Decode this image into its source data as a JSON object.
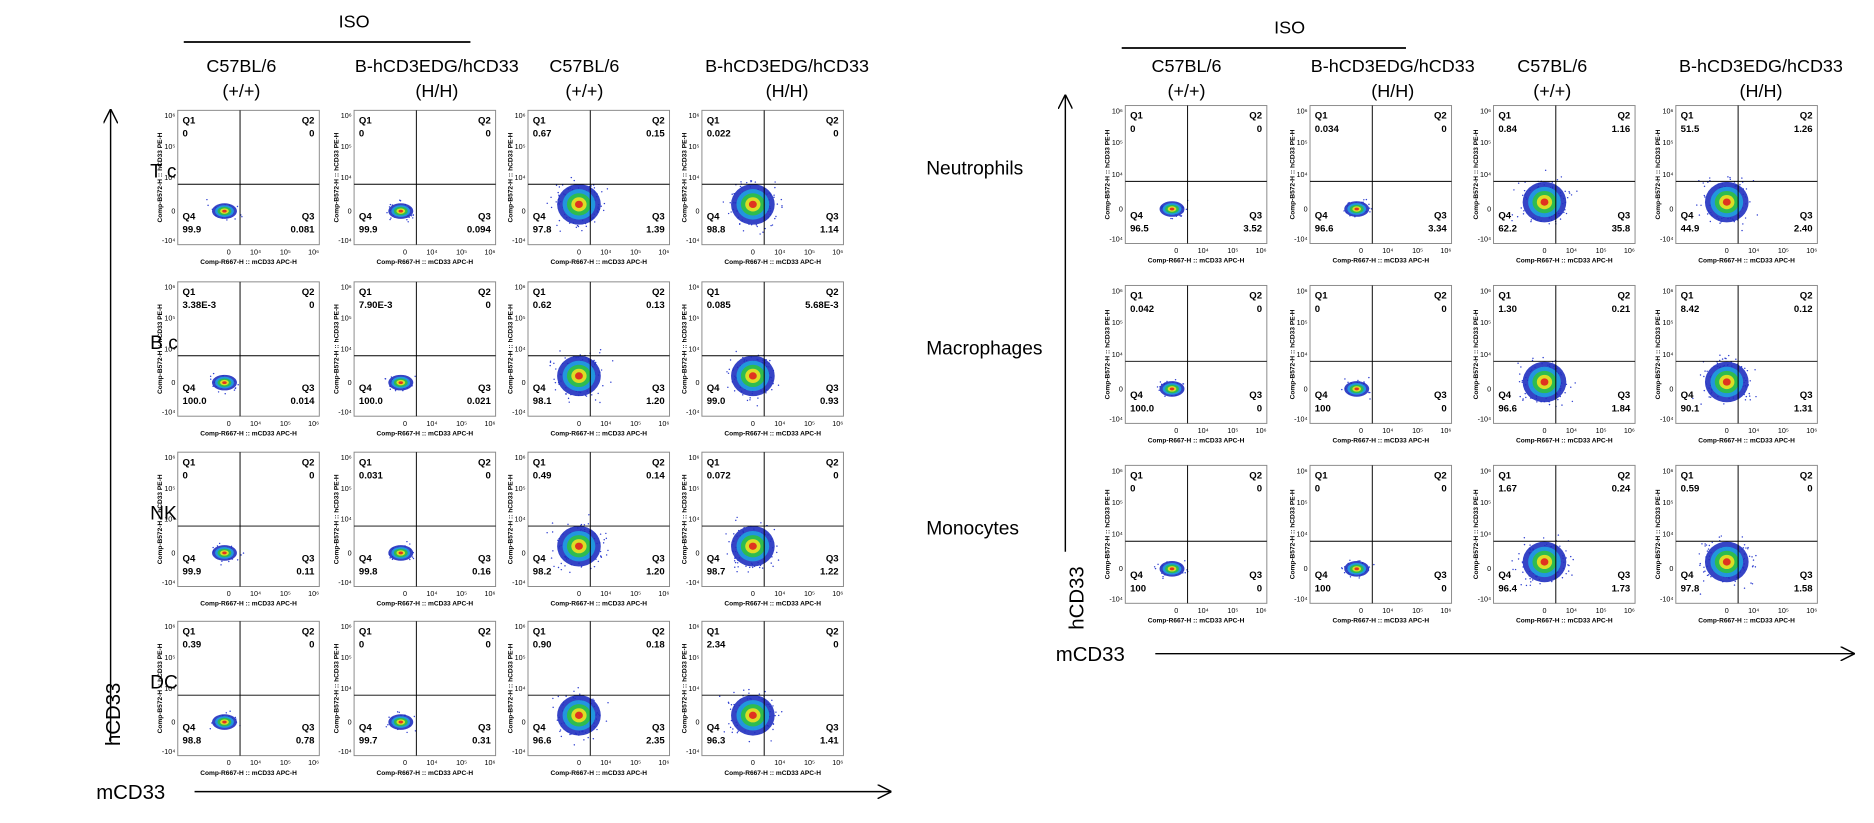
{
  "plot_text": {
    "quadrant_names": [
      "Q1",
      "Q2",
      "Q3",
      "Q4"
    ],
    "x_label": "Comp-R667-H :: mCD33 APC-H",
    "y_label": "Comp-B572-H :: hCD33 PE-H",
    "yticks": [
      "10⁶",
      "10⁵",
      "10⁴",
      "0",
      "-10⁴"
    ],
    "xticks": [
      "0",
      "10⁴",
      "10⁵",
      "10⁶"
    ]
  },
  "left": {
    "group_label": "ISO",
    "columns": [
      [
        "C57BL/6",
        "(+/+)"
      ],
      [
        "B-hCD3EDG/hCD33",
        "(H/H)"
      ],
      [
        "C57BL/6",
        "(+/+)"
      ],
      [
        "B-hCD3EDG/hCD33",
        "(H/H)"
      ]
    ],
    "rows": [
      "T cells",
      "B cells",
      "NKs",
      "DCs"
    ],
    "y_axis": "hCD33",
    "x_axis": "mCD33",
    "panels": [
      [
        [
          "0",
          "0",
          "0.081",
          "99.9"
        ],
        [
          "0",
          "0",
          "0.094",
          "99.9"
        ],
        [
          "0.67",
          "0.15",
          "1.39",
          "97.8"
        ],
        [
          "0.022",
          "0",
          "1.14",
          "98.8"
        ]
      ],
      [
        [
          "3.38E-3",
          "0",
          "0.014",
          "100.0"
        ],
        [
          "7.90E-3",
          "0",
          "0.021",
          "100.0"
        ],
        [
          "0.62",
          "0.13",
          "1.20",
          "98.1"
        ],
        [
          "0.085",
          "5.68E-3",
          "0.93",
          "99.0"
        ]
      ],
      [
        [
          "0",
          "0",
          "0.11",
          "99.9"
        ],
        [
          "0.031",
          "0",
          "0.16",
          "99.8"
        ],
        [
          "0.49",
          "0.14",
          "1.20",
          "98.2"
        ],
        [
          "0.072",
          "0",
          "1.22",
          "98.7"
        ]
      ],
      [
        [
          "0.39",
          "0",
          "0.78",
          "98.8"
        ],
        [
          "0",
          "0",
          "0.31",
          "99.7"
        ],
        [
          "0.90",
          "0.18",
          "2.35",
          "96.6"
        ],
        [
          "2.34",
          "0",
          "1.41",
          "96.3"
        ]
      ]
    ]
  },
  "right": {
    "group_label": "ISO",
    "columns": [
      [
        "C57BL/6",
        "(+/+)"
      ],
      [
        "B-hCD3EDG/hCD33",
        "(H/H)"
      ],
      [
        "C57BL/6",
        "(+/+)"
      ],
      [
        "B-hCD3EDG/hCD33",
        "(H/H)"
      ]
    ],
    "rows": [
      "Neutrophils",
      "Macrophages",
      "Monocytes"
    ],
    "y_axis": "hCD33",
    "x_axis": "mCD33",
    "panels": [
      [
        [
          "0",
          "0",
          "3.52",
          "96.5"
        ],
        [
          "0.034",
          "0",
          "3.34",
          "96.6"
        ],
        [
          "0.84",
          "1.16",
          "35.8",
          "62.2"
        ],
        [
          "51.5",
          "1.26",
          "2.40",
          "44.9"
        ]
      ],
      [
        [
          "0.042",
          "0",
          "0",
          "100.0"
        ],
        [
          "0",
          "0",
          "0",
          "100"
        ],
        [
          "1.30",
          "0.21",
          "1.84",
          "96.6"
        ],
        [
          "8.42",
          "0.12",
          "1.31",
          "90.1"
        ]
      ],
      [
        [
          "0",
          "0",
          "0",
          "100"
        ],
        [
          "0",
          "0",
          "0",
          "100"
        ],
        [
          "1.67",
          "0.24",
          "1.73",
          "96.4"
        ],
        [
          "0.59",
          "0",
          "1.58",
          "97.8"
        ]
      ]
    ]
  }
}
